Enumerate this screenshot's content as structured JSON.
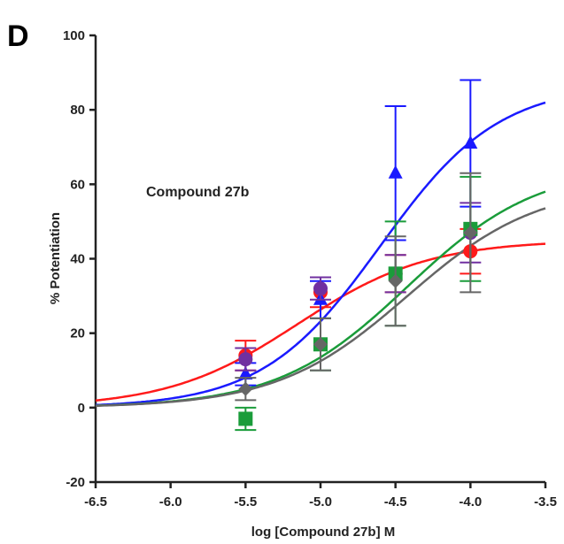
{
  "chart_data": {
    "type": "line",
    "panel_label": "D",
    "annotation": "Compound 27b",
    "xlabel": "log [Compound 27b] M",
    "ylabel": "% Potentiation",
    "xlim": [
      -6.5,
      -3.5
    ],
    "ylim": [
      -20,
      100
    ],
    "xticks": [
      "-6.5",
      "-6.0",
      "-5.5",
      "-5.0",
      "-4.5",
      "-4.0",
      "-3.5"
    ],
    "yticks": [
      "-20",
      "0",
      "20",
      "40",
      "60",
      "80",
      "100"
    ],
    "grid": false,
    "x": [
      -5.5,
      -5.0,
      -4.5,
      -4.0
    ],
    "series": [
      {
        "color": "#ff1a1a",
        "marker": "circle",
        "values": [
          14,
          31,
          36,
          42
        ],
        "errors": [
          4,
          4,
          5,
          6
        ],
        "fit": {
          "bottom": 0,
          "top": 45,
          "logec50": -5.15,
          "hill": 1.0
        }
      },
      {
        "color": "#1a1aff",
        "marker": "triangle",
        "values": [
          9,
          29,
          63,
          71
        ],
        "errors": [
          3,
          5,
          18,
          17
        ],
        "fit": {
          "bottom": 0,
          "top": 87,
          "logec50": -4.6,
          "hill": 1.1
        }
      },
      {
        "color": "#7030a0",
        "marker": "circle",
        "values": [
          13,
          32,
          36,
          47
        ],
        "errors": [
          3,
          3,
          5,
          8
        ]
      },
      {
        "color": "#1a9c3a",
        "marker": "square",
        "values": [
          -3,
          17,
          36,
          48
        ],
        "errors": [
          3,
          7,
          14,
          14
        ],
        "fit": {
          "bottom": 0,
          "top": 65,
          "logec50": -4.42,
          "hill": 1.0
        }
      },
      {
        "color": "#666666",
        "marker": "diamond",
        "values": [
          5,
          17,
          34,
          47
        ],
        "errors": [
          3,
          7,
          12,
          16
        ],
        "fit": {
          "bottom": 0,
          "top": 60,
          "logec50": -4.42,
          "hill": 1.0
        }
      }
    ]
  }
}
